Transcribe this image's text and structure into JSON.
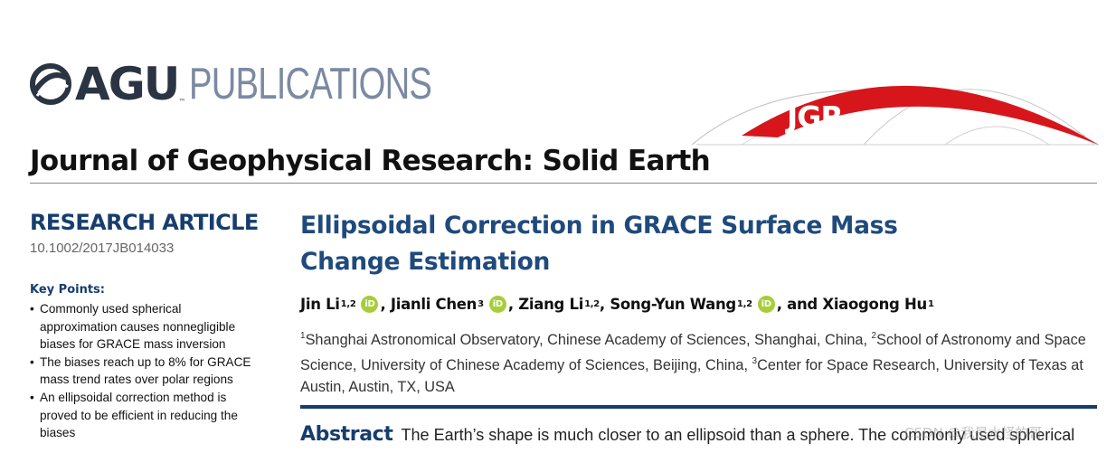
{
  "header": {
    "publisher_word": "AGU",
    "publisher_tm": "™",
    "publications_word": "PUBLICATIONS",
    "jgr_logo_text": "JGR",
    "journal_title": "Journal of Geophysical Research: Solid Earth",
    "colors": {
      "agu": "#2b3442",
      "publications": "#7b8aa3",
      "jgr_red": "#d7161c"
    }
  },
  "sidebar": {
    "article_type": "RESEARCH ARTICLE",
    "doi": "10.1002/2017JB014033",
    "key_points_title": "Key Points:",
    "key_points": [
      "Commonly used spherical approximation causes nonnegligible biases for GRACE mass inversion",
      "The biases reach up to 8% for GRACE mass trend rates over polar regions",
      "An ellipsoidal correction method is proved to be efficient in reducing the biases"
    ]
  },
  "article": {
    "title": "Ellipsoidal Correction in GRACE Surface Mass Change Estimation",
    "authors": [
      {
        "name": "Jin Li",
        "sup": "1,2",
        "orcid": true,
        "sep": ","
      },
      {
        "name": "Jianli Chen",
        "sup": "3",
        "orcid": true,
        "sep": ","
      },
      {
        "name": "Ziang Li",
        "sup": "1,2",
        "orcid": false,
        "sep": ","
      },
      {
        "name": "Song-Yun Wang",
        "sup": "1,2",
        "orcid": true,
        "sep": ","
      },
      {
        "name": "and Xiaogong Hu",
        "sup": "1",
        "orcid": false,
        "sep": ""
      }
    ],
    "orcid_icon_text": "iD",
    "affiliations": {
      "a1_sup": "1",
      "a1": "Shanghai Astronomical Observatory, Chinese Academy of Sciences, Shanghai, China, ",
      "a2_sup": "2",
      "a2": "School of Astronomy and Space Science, University of Chinese Academy of Sciences, Beijing, China, ",
      "a3_sup": "3",
      "a3": "Center for Space Research, University of Texas at Austin, Austin, TX, USA"
    },
    "abstract_label": "Abstract",
    "abstract_text": "The Earth’s shape is much closer to an ellipsoid than a sphere. The commonly used spherical"
  },
  "watermark": "CSDN @我是水怪的哥"
}
